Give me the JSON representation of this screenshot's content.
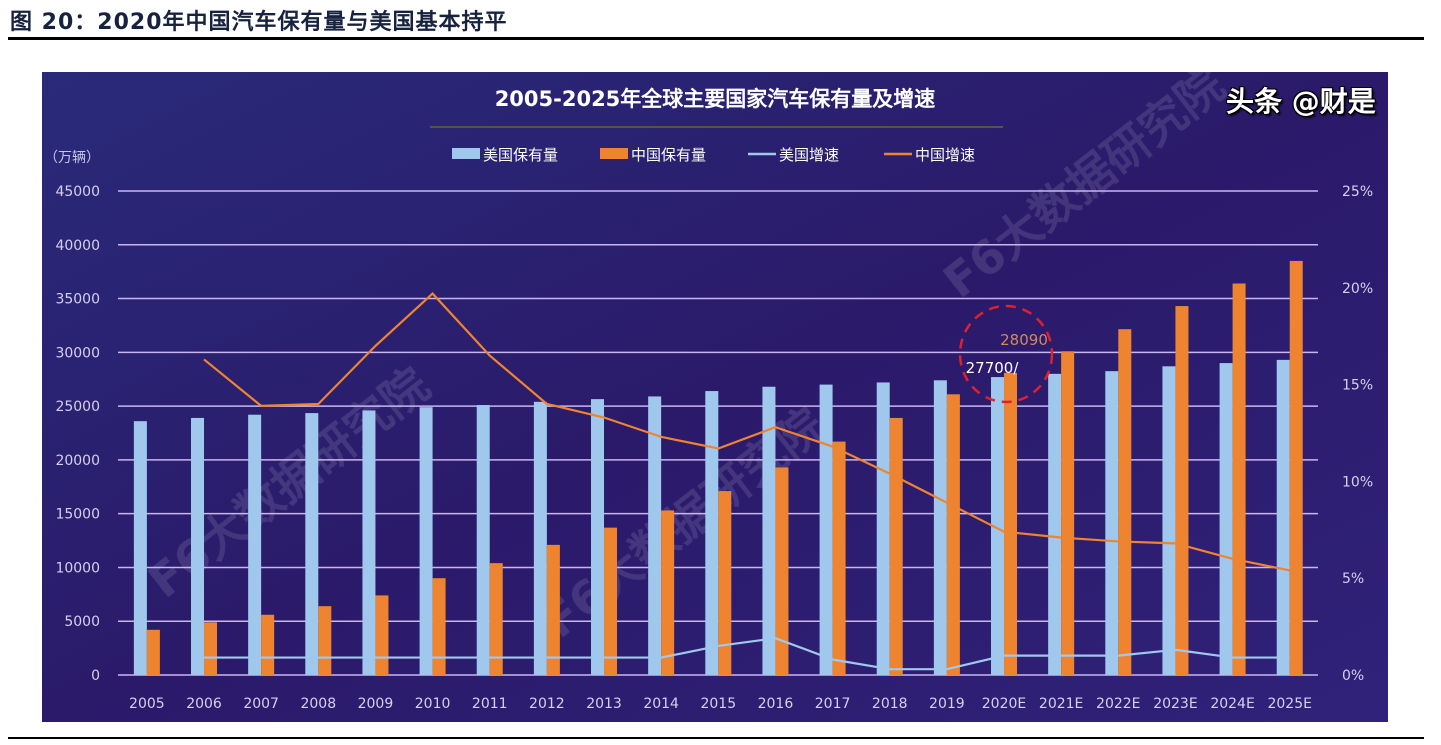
{
  "figure_title": "图 20：2020年中国汽车保有量与美国基本持平",
  "credit": "头条 @财是",
  "watermark": "F6大数据研究院",
  "colors": {
    "background": "#2b1a6a",
    "us_bar": "#9fc8ec",
    "cn_bar": "#ef8430",
    "us_line": "#9fc8ec",
    "cn_line": "#ef8430",
    "grid": "#c9b6ef",
    "highlight": "#e0202a"
  },
  "chart_data": {
    "type": "bar",
    "title": "2005-2025年全球主要国家汽车保有量及增速",
    "ylabel": "（万辆）",
    "ylim": [
      0,
      45000
    ],
    "y2lim": [
      0,
      25
    ],
    "yticks": [
      "0",
      "5000",
      "10000",
      "15000",
      "20000",
      "25000",
      "30000",
      "35000",
      "40000",
      "45000"
    ],
    "y2ticks": [
      "0%",
      "5%",
      "10%",
      "15%",
      "20%",
      "25%"
    ],
    "grid": true,
    "legend_placement": "top-center",
    "categories": [
      "2005",
      "2006",
      "2007",
      "2008",
      "2009",
      "2010",
      "2011",
      "2012",
      "2013",
      "2014",
      "2015",
      "2016",
      "2017",
      "2018",
      "2019",
      "2020E",
      "2021E",
      "2022E",
      "2023E",
      "2024E",
      "2025E"
    ],
    "series": [
      {
        "name": "美国保有量",
        "type": "bar",
        "axis": "left",
        "values": [
          23600,
          23900,
          24200,
          24350,
          24600,
          24900,
          25100,
          25400,
          25650,
          25900,
          26400,
          26800,
          27000,
          27200,
          27400,
          27700,
          28000,
          28250,
          28700,
          29000,
          29300
        ]
      },
      {
        "name": "中国保有量",
        "type": "bar",
        "axis": "left",
        "values": [
          4200,
          4900,
          5600,
          6400,
          7400,
          9000,
          10400,
          12100,
          13700,
          15300,
          17100,
          19300,
          21700,
          23900,
          26100,
          28090,
          30100,
          32150,
          34300,
          36400,
          38500
        ]
      },
      {
        "name": "美国增速",
        "type": "line",
        "axis": "right",
        "unit": "%",
        "values": [
          null,
          0.9,
          0.9,
          0.9,
          0.9,
          0.9,
          0.9,
          0.9,
          0.9,
          0.9,
          1.5,
          1.9,
          0.8,
          0.3,
          0.3,
          1.0,
          1.0,
          1.0,
          1.3,
          0.9,
          0.9
        ]
      },
      {
        "name": "中国增速",
        "type": "line",
        "axis": "right",
        "unit": "%",
        "values": [
          null,
          16.3,
          13.9,
          14.0,
          17.0,
          19.7,
          16.5,
          14.0,
          13.3,
          12.3,
          11.7,
          12.8,
          11.8,
          10.4,
          8.9,
          7.4,
          7.1,
          6.9,
          6.8,
          6.0,
          5.4
        ]
      }
    ],
    "annotations": [
      {
        "category": "2020E",
        "text": "28090",
        "series": "中国保有量"
      },
      {
        "category": "2020E",
        "text": "27700/",
        "series": "美国保有量"
      }
    ]
  }
}
